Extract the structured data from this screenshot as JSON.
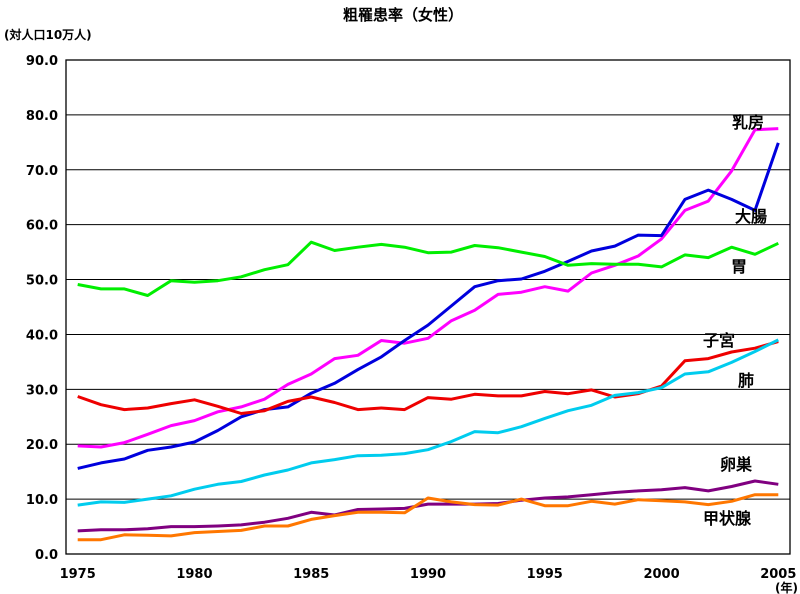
{
  "chart_data": {
    "type": "line",
    "title": "粗罹患率（女性）",
    "ylabel": "(対人口10万人)",
    "xunit": "(年)",
    "ylim": [
      0,
      90
    ],
    "xlim": [
      1974.5,
      2005.5
    ],
    "grid": true,
    "ytick_labels": [
      "0.0",
      "10.0",
      "20.0",
      "30.0",
      "40.0",
      "50.0",
      "60.0",
      "70.0",
      "80.0",
      "90.0"
    ],
    "xtick_labels": [
      "1975",
      "1980",
      "1985",
      "1990",
      "1995",
      "2000",
      "2005"
    ],
    "x": [
      1975,
      1976,
      1977,
      1978,
      1979,
      1980,
      1981,
      1982,
      1983,
      1984,
      1985,
      1986,
      1987,
      1988,
      1989,
      1990,
      1991,
      1992,
      1993,
      1994,
      1995,
      1996,
      1997,
      1998,
      1999,
      2000,
      2001,
      2002,
      2003,
      2004,
      2005
    ],
    "series": [
      {
        "name": "乳房",
        "color": "#ff00ff",
        "values": [
          19.7,
          19.5,
          20.3,
          21.8,
          23.4,
          24.3,
          25.9,
          26.8,
          28.2,
          30.9,
          32.8,
          35.6,
          36.2,
          38.9,
          38.4,
          39.3,
          42.5,
          44.4,
          47.3,
          47.7,
          48.7,
          47.9,
          51.2,
          52.6,
          54.3,
          57.4,
          62.6,
          64.3,
          69.8,
          77.3,
          77.5
        ]
      },
      {
        "name": "大腸",
        "color": "#0000dd",
        "values": [
          15.6,
          16.6,
          17.3,
          18.9,
          19.5,
          20.4,
          22.5,
          25.0,
          26.3,
          26.8,
          29.3,
          31.1,
          33.6,
          35.9,
          38.9,
          41.7,
          45.2,
          48.7,
          49.8,
          50.1,
          51.5,
          53.3,
          55.2,
          56.1,
          58.1,
          58.0,
          64.6,
          66.3,
          64.6,
          62.6,
          74.9
        ]
      },
      {
        "name": "胃",
        "color": "#00ee00",
        "values": [
          49.1,
          48.3,
          48.3,
          47.1,
          49.8,
          49.5,
          49.8,
          50.5,
          51.8,
          52.7,
          56.8,
          55.3,
          55.9,
          56.4,
          55.9,
          54.9,
          55.0,
          56.2,
          55.8,
          55.0,
          54.2,
          52.6,
          52.9,
          52.8,
          52.8,
          52.3,
          54.5,
          54.0,
          55.9,
          54.6,
          56.6
        ]
      },
      {
        "name": "子宮",
        "color": "#ee0000",
        "values": [
          28.7,
          27.2,
          26.3,
          26.6,
          27.4,
          28.1,
          26.9,
          25.6,
          26.1,
          27.8,
          28.6,
          27.6,
          26.3,
          26.6,
          26.3,
          28.5,
          28.2,
          29.1,
          28.8,
          28.8,
          29.6,
          29.2,
          29.9,
          28.6,
          29.2,
          30.6,
          35.2,
          35.6,
          36.8,
          37.5,
          38.7
        ]
      },
      {
        "name": "肺",
        "color": "#00ccee",
        "values": [
          8.9,
          9.5,
          9.4,
          10.0,
          10.6,
          11.8,
          12.7,
          13.2,
          14.4,
          15.3,
          16.6,
          17.2,
          17.9,
          18.0,
          18.3,
          19.0,
          20.5,
          22.3,
          22.1,
          23.2,
          24.7,
          26.1,
          27.1,
          28.9,
          29.4,
          30.3,
          32.8,
          33.2,
          34.9,
          36.9,
          39.0
        ]
      },
      {
        "name": "卵巣",
        "color": "#800080",
        "values": [
          4.2,
          4.4,
          4.4,
          4.6,
          5.0,
          5.0,
          5.1,
          5.3,
          5.8,
          6.5,
          7.6,
          7.1,
          8.1,
          8.2,
          8.3,
          9.1,
          9.1,
          9.1,
          9.2,
          9.8,
          10.2,
          10.4,
          10.8,
          11.2,
          11.5,
          11.7,
          12.1,
          11.5,
          12.3,
          13.3,
          12.7
        ]
      },
      {
        "name": "甲状腺",
        "color": "#ff7700",
        "values": [
          2.6,
          2.6,
          3.5,
          3.4,
          3.3,
          3.9,
          4.1,
          4.3,
          5.1,
          5.1,
          6.3,
          7.0,
          7.6,
          7.6,
          7.5,
          10.2,
          9.5,
          9.0,
          8.9,
          10.0,
          8.8,
          8.8,
          9.6,
          9.1,
          9.9,
          9.7,
          9.5,
          9.0,
          9.6,
          10.8,
          10.8
        ]
      }
    ]
  }
}
